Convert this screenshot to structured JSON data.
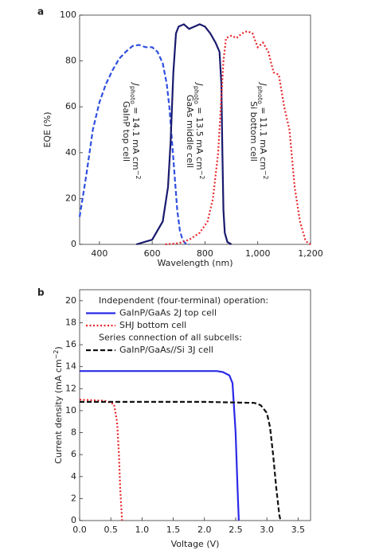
{
  "chart_data": [
    {
      "type": "line",
      "panel_label": "a",
      "xlabel": "Wavelength (nm)",
      "ylabel": "EQE (%)",
      "xlim": [
        325,
        1200
      ],
      "ylim": [
        0,
        100
      ],
      "xticks": [
        400,
        600,
        800,
        {
          "value": 1000,
          "label": "1,000"
        },
        {
          "value": 1200,
          "label": "1,200"
        }
      ],
      "yticks": [
        0,
        20,
        40,
        60,
        80,
        100
      ],
      "series": [
        {
          "name": "GaInP",
          "color": "#2f4fe0",
          "style": "dashed",
          "x": [
            325,
            350,
            375,
            400,
            425,
            450,
            475,
            500,
            525,
            550,
            575,
            600,
            620,
            640,
            655,
            665,
            675,
            685,
            695,
            705,
            715,
            725,
            740
          ],
          "values": [
            12,
            30,
            50,
            62,
            70,
            76,
            81,
            84,
            86.5,
            87,
            86,
            86,
            84,
            79,
            70,
            60,
            45,
            30,
            15,
            6,
            2,
            0.5,
            0
          ]
        },
        {
          "name": "GaAs",
          "color": "#1a1a6e",
          "style": "solid",
          "x": [
            540,
            570,
            600,
            640,
            660,
            670,
            680,
            690,
            700,
            720,
            740,
            760,
            780,
            800,
            820,
            840,
            855,
            862,
            866,
            870,
            875,
            885,
            900
          ],
          "values": [
            0,
            1,
            2,
            10,
            25,
            45,
            75,
            92,
            95,
            96,
            94,
            95,
            96,
            95,
            92,
            88,
            84,
            70,
            40,
            15,
            5,
            1,
            0
          ]
        },
        {
          "name": "Si",
          "color": "#e8262a",
          "style": "dotted",
          "x": [
            650,
            700,
            740,
            780,
            810,
            830,
            850,
            860,
            870,
            880,
            900,
            920,
            940,
            960,
            980,
            1000,
            1020,
            1040,
            1060,
            1080,
            1100,
            1120,
            1140,
            1160,
            1180,
            1190,
            1200
          ],
          "values": [
            0,
            0.5,
            2,
            5,
            10,
            20,
            40,
            60,
            80,
            90,
            91,
            90,
            92,
            93,
            92,
            86,
            88,
            84,
            75,
            74,
            60,
            50,
            25,
            10,
            2,
            0.5,
            0
          ]
        }
      ],
      "annotations": [
        {
          "label": "GaInP top cell",
          "symbol": "J",
          "subscript": "photo",
          "text": " = 14.1 mA cm",
          "superscript": "−2"
        },
        {
          "label": "GaAs middle cell",
          "symbol": "J",
          "subscript": "photo",
          "text": " = 13.5 mA cm",
          "superscript": "−2"
        },
        {
          "label": "Si bottom cell",
          "symbol": "J",
          "subscript": "photo",
          "text": " = 11.1 mA cm",
          "superscript": "−2"
        }
      ]
    },
    {
      "type": "line",
      "panel_label": "b",
      "xlabel": "Voltage (V)",
      "ylabel": {
        "text": "Current density (mA cm",
        "superscript": "−2",
        "suffix": ")"
      },
      "xlim": [
        0,
        3.7
      ],
      "ylim": [
        0,
        21
      ],
      "xticks": [
        {
          "value": 0,
          "label": "0.0"
        },
        0.5,
        {
          "value": 1,
          "label": "1.0"
        },
        1.5,
        {
          "value": 2,
          "label": "2.0"
        },
        2.5,
        {
          "value": 3,
          "label": "3.0"
        },
        3.5
      ],
      "yticks": [
        0,
        2,
        4,
        6,
        8,
        10,
        12,
        14,
        16,
        18,
        20
      ],
      "legend_headers": [
        "Independent (four-terminal) operation:",
        "Series connection of all subcells:"
      ],
      "series": [
        {
          "name": "GaInP/GaAs 2J top cell",
          "color": "#2a2ae8",
          "style": "solid",
          "x": [
            0,
            1,
            2,
            2.2,
            2.3,
            2.4,
            2.45,
            2.5,
            2.53,
            2.55
          ],
          "values": [
            13.6,
            13.6,
            13.6,
            13.6,
            13.5,
            13.2,
            12.5,
            8,
            3,
            0
          ]
        },
        {
          "name": "SHJ bottom cell",
          "color": "#e8262a",
          "style": "dotted",
          "x": [
            0,
            0.4,
            0.55,
            0.6,
            0.63,
            0.65,
            0.68
          ],
          "values": [
            11,
            10.9,
            10.6,
            9,
            6,
            3,
            0
          ]
        },
        {
          "name": "GaInP/GaAs//Si 3J cell",
          "color": "#111111",
          "style": "dashed",
          "x": [
            0,
            1,
            2,
            2.8,
            2.9,
            3,
            3.05,
            3.1,
            3.15,
            3.2,
            3.22
          ],
          "values": [
            10.8,
            10.8,
            10.8,
            10.7,
            10.5,
            9.8,
            8.5,
            6,
            3,
            0.5,
            0
          ]
        }
      ]
    }
  ]
}
